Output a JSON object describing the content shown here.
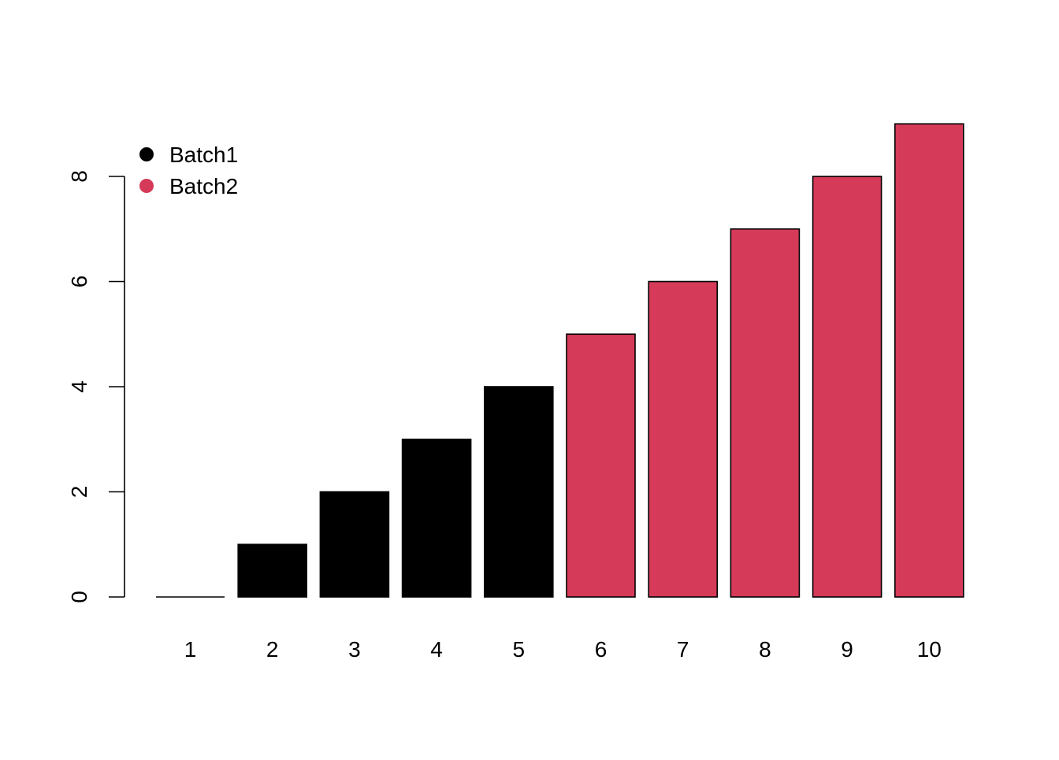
{
  "chart_data": {
    "type": "bar",
    "title": "",
    "xlabel": "",
    "ylabel": "",
    "categories": [
      "1",
      "2",
      "3",
      "4",
      "5",
      "6",
      "7",
      "8",
      "9",
      "10"
    ],
    "values": [
      0,
      1,
      2,
      3,
      4,
      5,
      6,
      7,
      8,
      9
    ],
    "groups": [
      "Batch1",
      "Batch1",
      "Batch1",
      "Batch1",
      "Batch1",
      "Batch2",
      "Batch2",
      "Batch2",
      "Batch2",
      "Batch2"
    ],
    "ylim": [
      0,
      9
    ],
    "y_ticks": [
      "0",
      "2",
      "4",
      "6",
      "8"
    ],
    "legend": {
      "position": "top-left",
      "entries": [
        {
          "label": "Batch1",
          "color": "#000000"
        },
        {
          "label": "Batch2",
          "color": "#d53a59"
        }
      ]
    },
    "grid": false,
    "bar_outline_color": "#000000"
  }
}
